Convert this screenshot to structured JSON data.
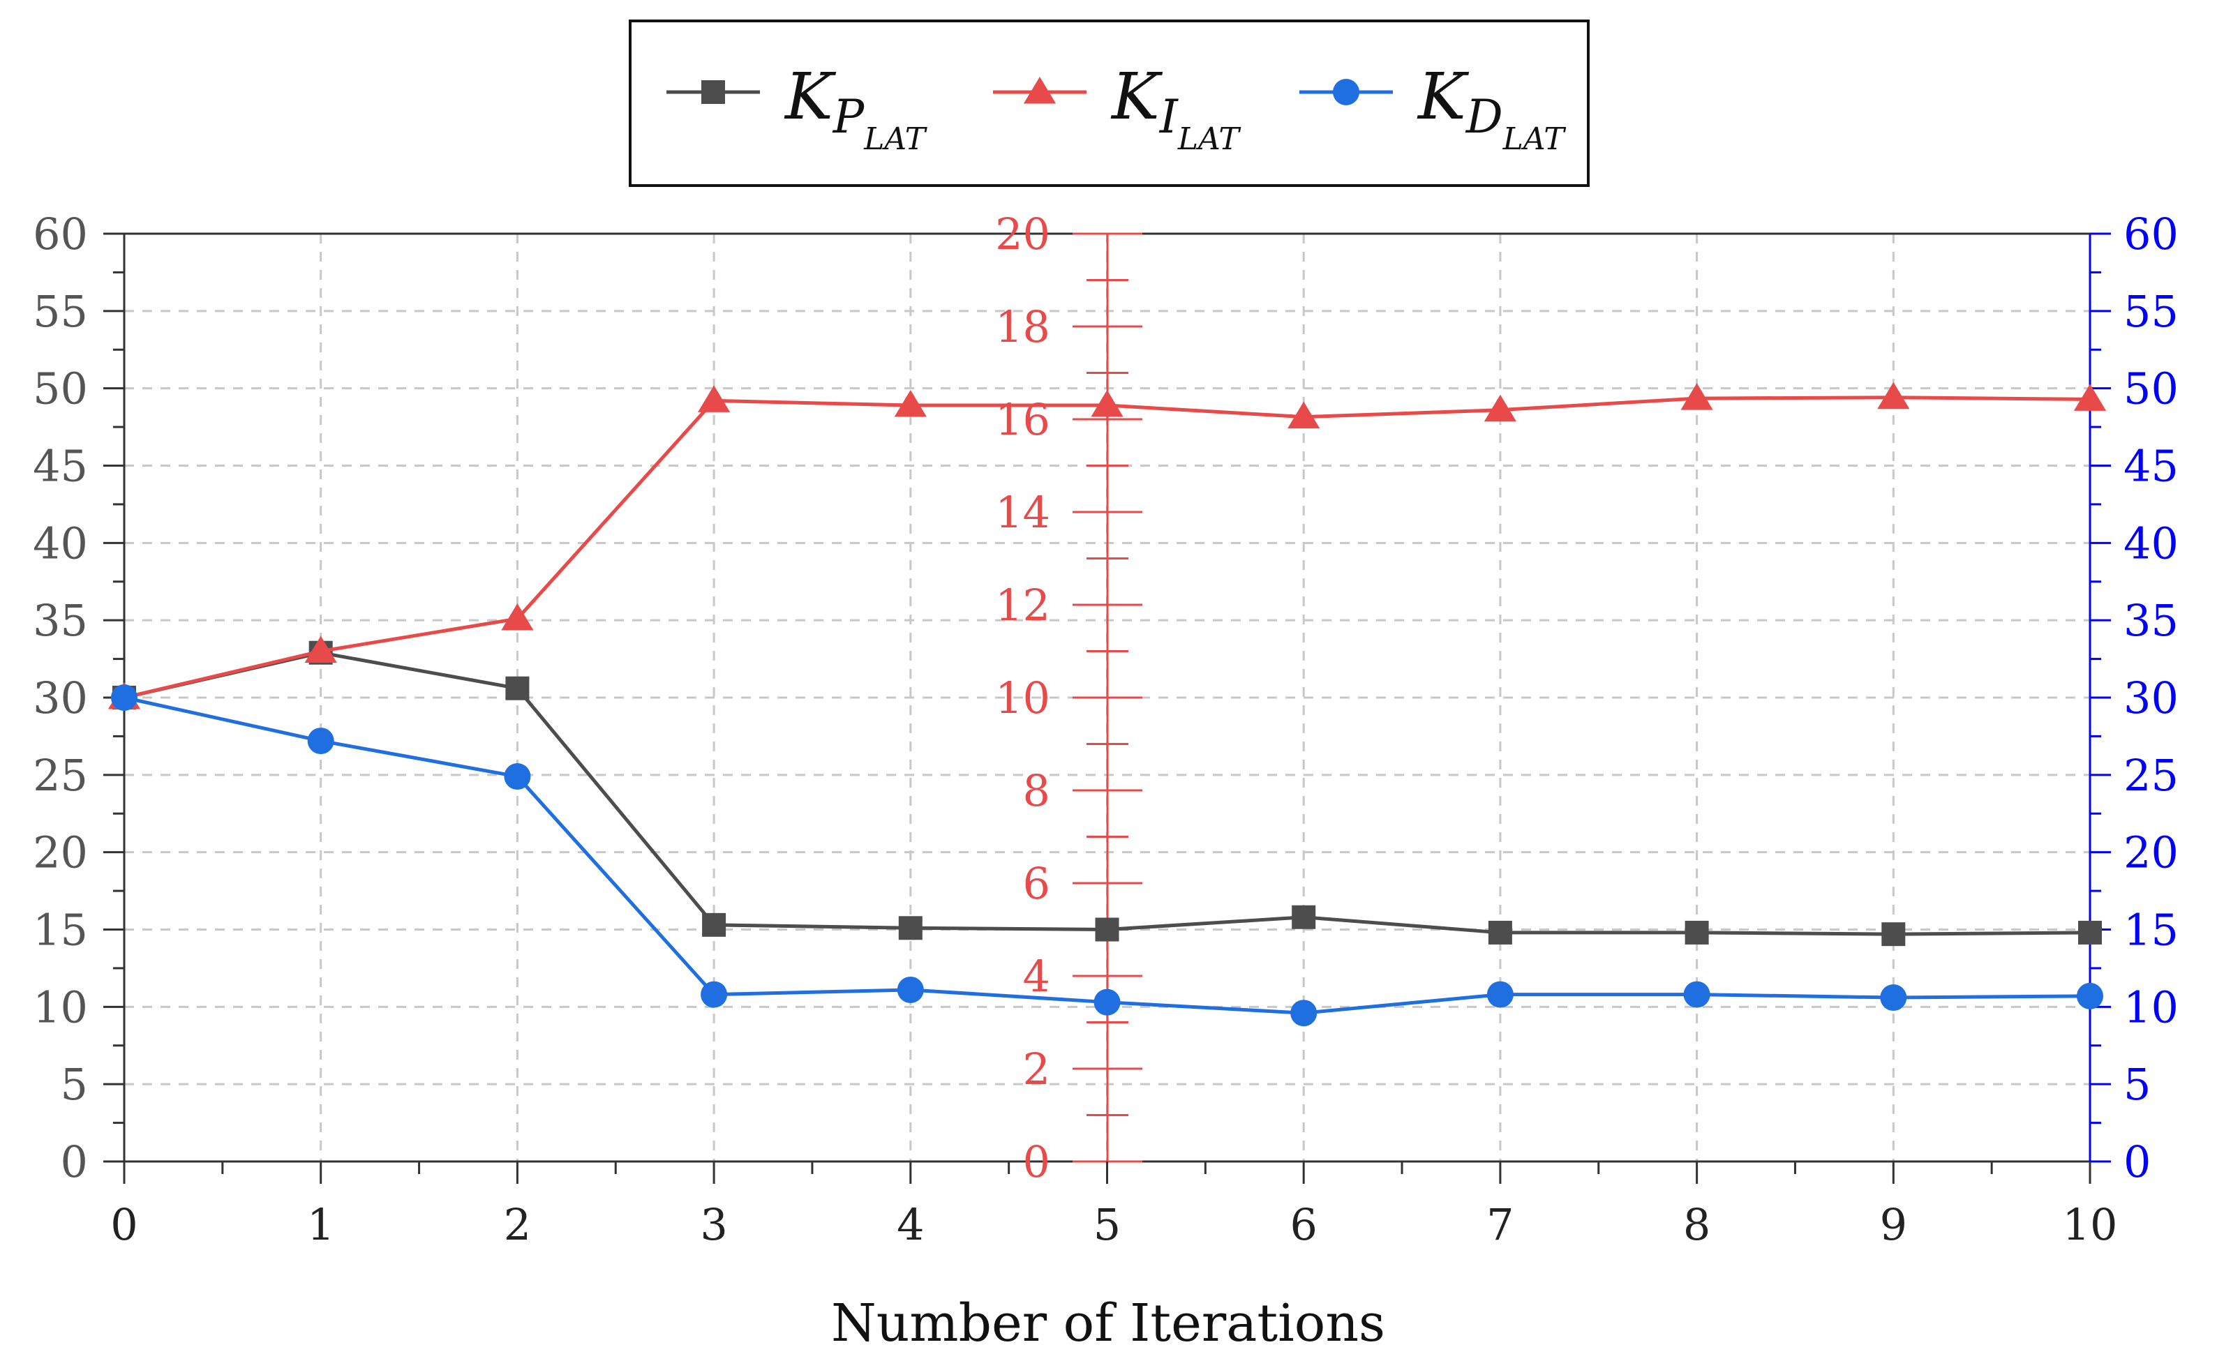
{
  "chart_data": {
    "type": "line",
    "title": "",
    "xlabel": "Number of Iterations",
    "x": [
      0,
      1,
      2,
      3,
      4,
      5,
      6,
      7,
      8,
      9,
      10
    ],
    "xlim": [
      0,
      10
    ],
    "x_tick_labels": [
      "0",
      "1",
      "2",
      "3",
      "4",
      "5",
      "6",
      "7",
      "8",
      "9",
      "10"
    ],
    "grid": true,
    "legend": {
      "placement": "top-center",
      "entries": [
        {
          "series": "KP_LAT",
          "main": "K",
          "sub": "P",
          "subsub": "LAT"
        },
        {
          "series": "KI_LAT",
          "main": "K",
          "sub": "I",
          "subsub": "LAT"
        },
        {
          "series": "KD_LAT",
          "main": "K",
          "sub": "D",
          "subsub": "LAT"
        }
      ]
    },
    "axes": {
      "left": {
        "ylim": [
          0,
          60
        ],
        "ticks": [
          "0",
          "5",
          "10",
          "15",
          "20",
          "25",
          "30",
          "35",
          "40",
          "45",
          "50",
          "55",
          "60"
        ],
        "color": "#555555"
      },
      "middle": {
        "ylim": [
          0,
          20
        ],
        "ticks": [
          "0",
          "2",
          "4",
          "6",
          "8",
          "10",
          "12",
          "14",
          "16",
          "18",
          "20"
        ],
        "color": "#e84a4a"
      },
      "right": {
        "ylim": [
          0,
          60
        ],
        "ticks": [
          "0",
          "5",
          "10",
          "15",
          "20",
          "25",
          "30",
          "35",
          "40",
          "45",
          "50",
          "55",
          "60"
        ],
        "color": "#0000ff"
      }
    },
    "series": [
      {
        "name": "KP_LAT",
        "axis": "left",
        "color": "#4d4d4d",
        "marker": "square",
        "values": [
          30.0,
          32.9,
          30.6,
          15.3,
          15.1,
          15.0,
          15.8,
          14.8,
          14.8,
          14.7,
          14.8
        ]
      },
      {
        "name": "KI_LAT",
        "axis": "middle",
        "color": "#e84a4a",
        "marker": "triangle",
        "values": [
          10.0,
          11.0,
          11.7,
          16.4,
          16.3,
          16.3,
          16.05,
          16.2,
          16.45,
          16.47,
          16.43
        ]
      },
      {
        "name": "KD_LAT",
        "axis": "right",
        "color": "#1f6fe0",
        "marker": "circle",
        "values": [
          30.0,
          27.2,
          24.9,
          10.8,
          11.1,
          10.3,
          9.6,
          10.8,
          10.8,
          10.6,
          10.7
        ]
      }
    ]
  }
}
